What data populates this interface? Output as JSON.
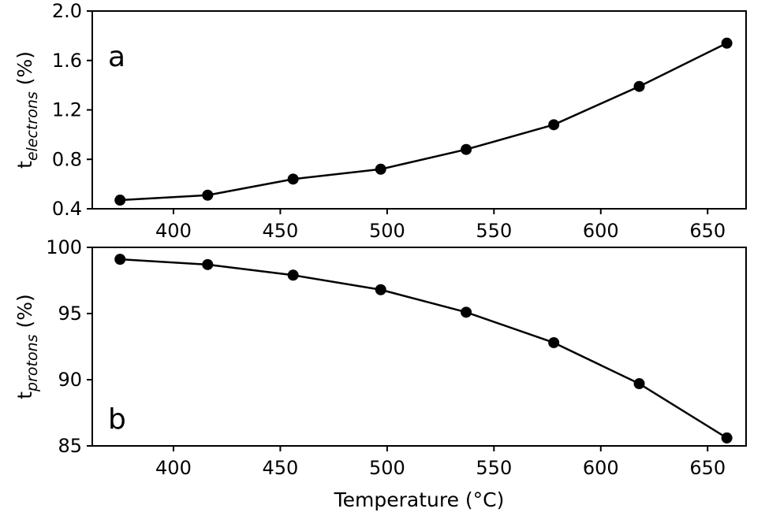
{
  "chart_data": [
    {
      "type": "line",
      "panel_label": "a",
      "ylabel": {
        "base": "t",
        "sub": "electrons",
        "unit": " (%)"
      },
      "xlabel": "",
      "xlim": [
        362,
        668
      ],
      "ylim": [
        0.4,
        2.0
      ],
      "x_ticks": [
        400,
        450,
        500,
        550,
        600,
        650
      ],
      "y_ticks": [
        "0.4",
        "0.8",
        "1.2",
        "1.6",
        "2.0"
      ],
      "grid": false,
      "series": [
        {
          "color": "#000000",
          "marker": "circle",
          "points": [
            {
              "x": 375,
              "y": 0.47
            },
            {
              "x": 416,
              "y": 0.51
            },
            {
              "x": 456,
              "y": 0.64
            },
            {
              "x": 497,
              "y": 0.72
            },
            {
              "x": 537,
              "y": 0.88
            },
            {
              "x": 578,
              "y": 1.08
            },
            {
              "x": 618,
              "y": 1.39
            },
            {
              "x": 659,
              "y": 1.74
            }
          ]
        }
      ]
    },
    {
      "type": "line",
      "panel_label": "b",
      "ylabel": {
        "base": "t",
        "sub": "protons",
        "unit": " (%)"
      },
      "xlabel": "Temperature (°C)",
      "xlim": [
        362,
        668
      ],
      "ylim": [
        85,
        100
      ],
      "x_ticks": [
        400,
        450,
        500,
        550,
        600,
        650
      ],
      "y_ticks": [
        "85",
        "90",
        "95",
        "100"
      ],
      "grid": false,
      "series": [
        {
          "color": "#000000",
          "marker": "circle",
          "points": [
            {
              "x": 375,
              "y": 99.1
            },
            {
              "x": 416,
              "y": 98.7
            },
            {
              "x": 456,
              "y": 97.9
            },
            {
              "x": 497,
              "y": 96.8
            },
            {
              "x": 537,
              "y": 95.1
            },
            {
              "x": 578,
              "y": 92.8
            },
            {
              "x": 618,
              "y": 89.7
            },
            {
              "x": 659,
              "y": 85.6
            }
          ]
        }
      ]
    }
  ]
}
